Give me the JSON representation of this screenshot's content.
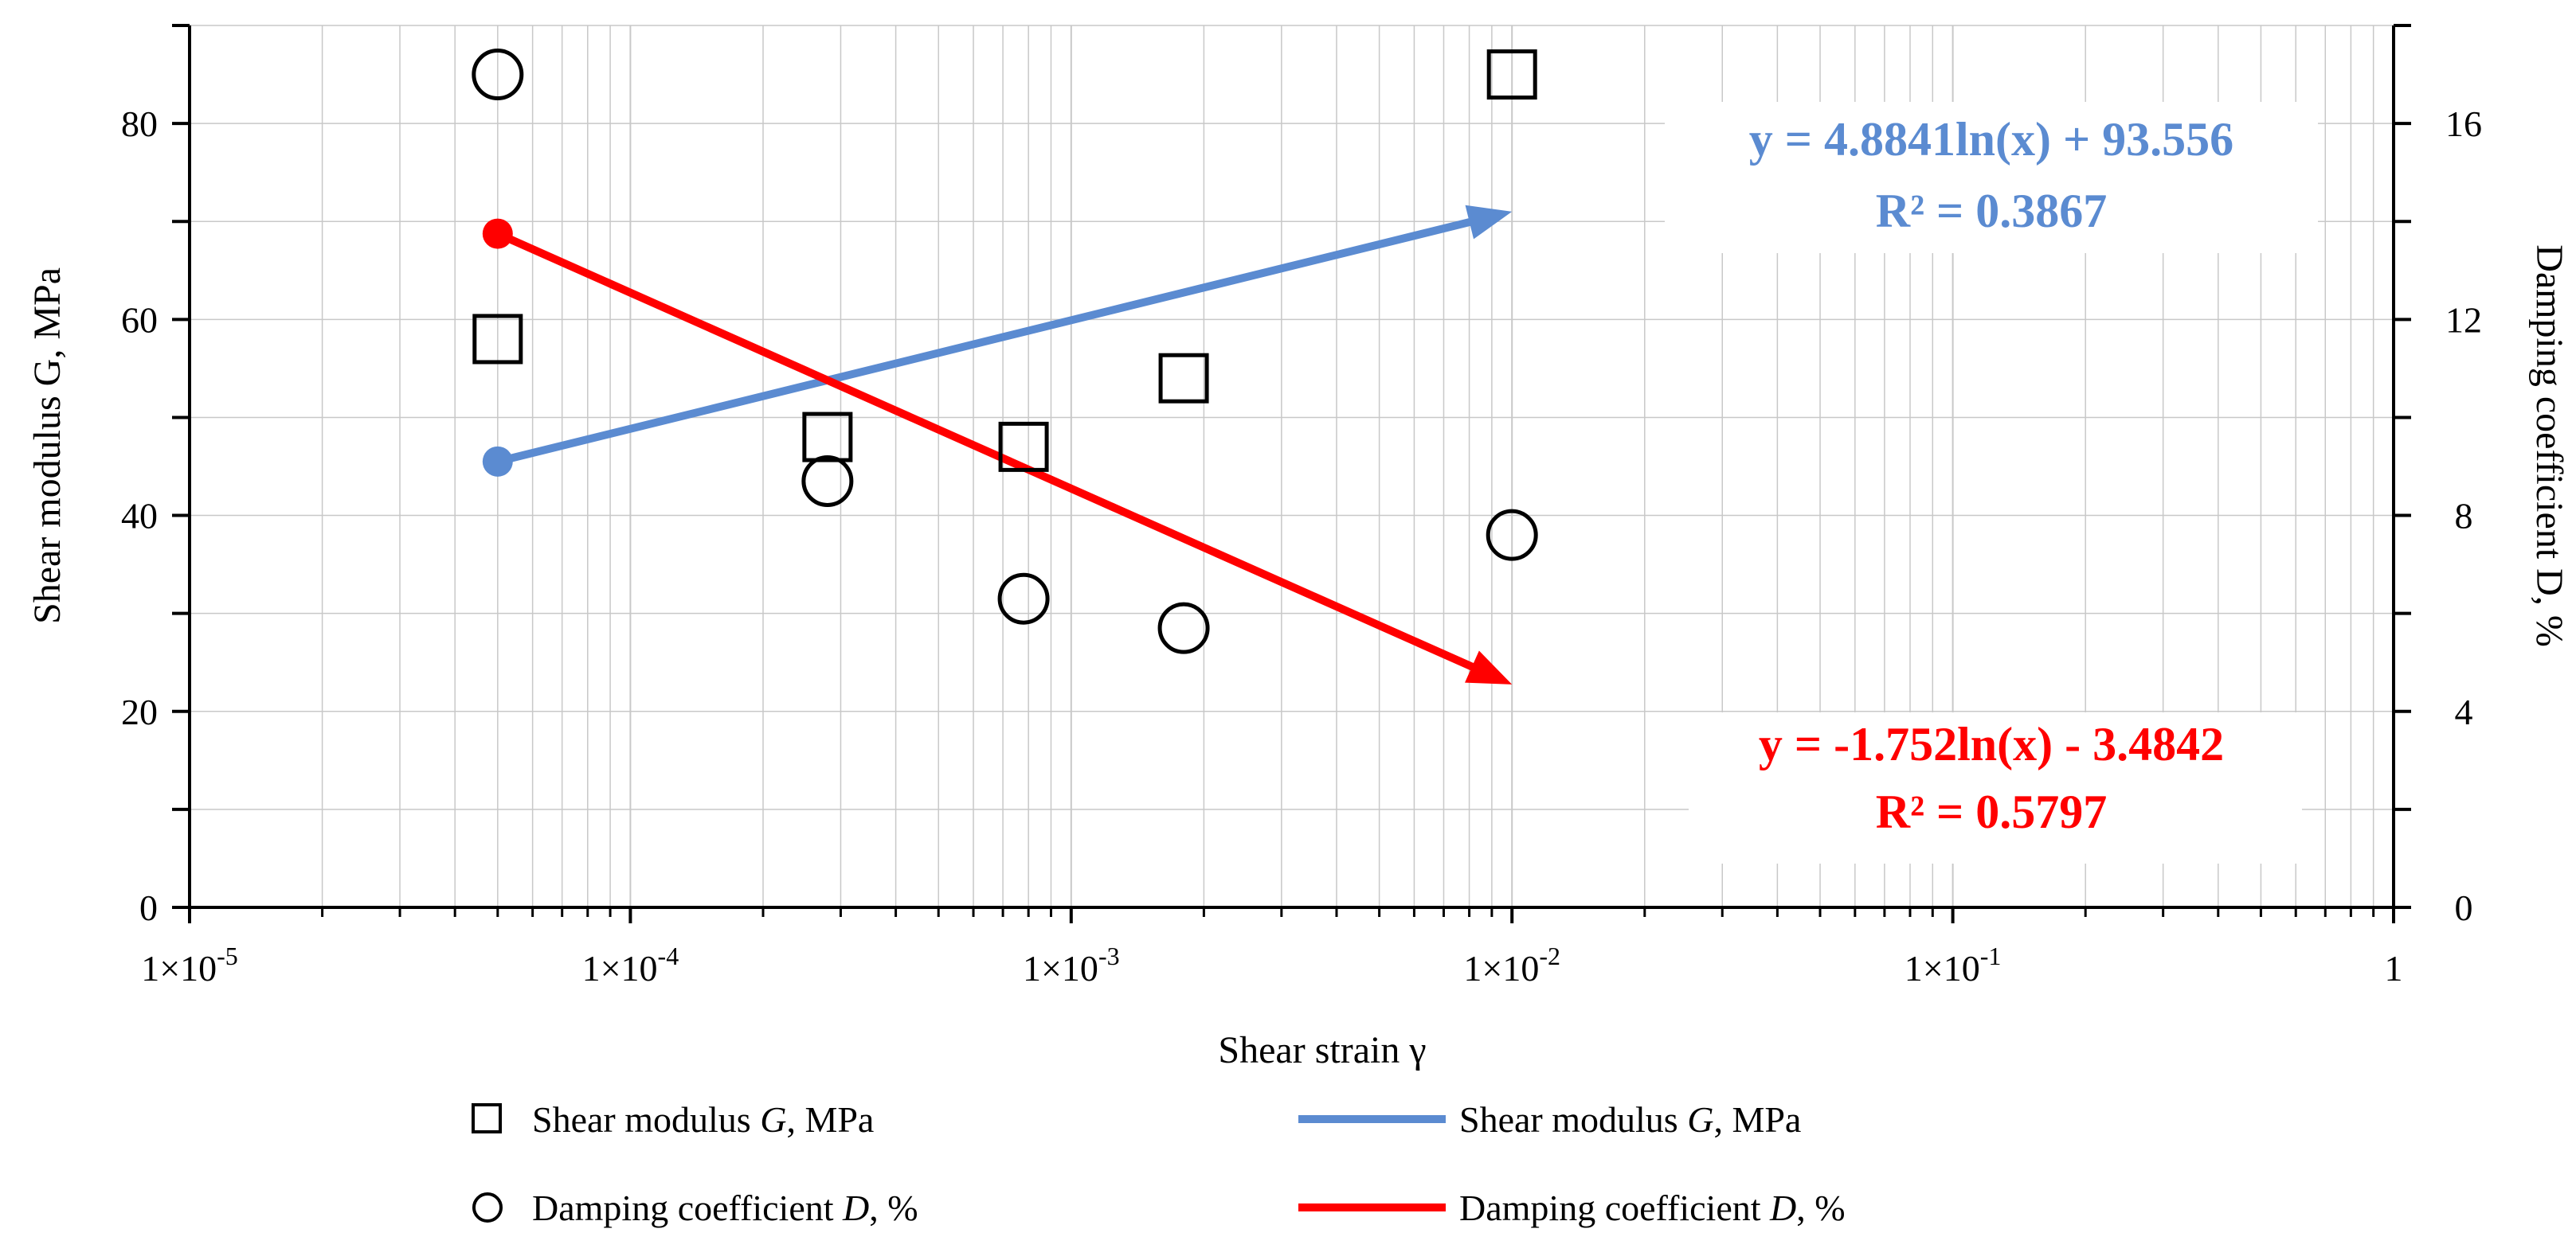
{
  "chart_data": {
    "type": "scatter",
    "x_scale": "log",
    "xlim": [
      1e-05,
      1
    ],
    "ylim_left": [
      0,
      90
    ],
    "ylim_right": [
      0,
      18
    ],
    "xlabel": "Shear strain γ",
    "ylabel_left": "Shear modulus G, MPa",
    "ylabel_right": "Damping coefficient D, %",
    "x_ticks": [
      {
        "value": 1e-05,
        "label": "1×10-5",
        "base": "1×10",
        "exp": "-5"
      },
      {
        "value": 0.0001,
        "label": "1×10-4",
        "base": "1×10",
        "exp": "-4"
      },
      {
        "value": 0.001,
        "label": "1×10-3",
        "base": "1×10",
        "exp": "-3"
      },
      {
        "value": 0.01,
        "label": "1×10-2",
        "base": "1×10",
        "exp": "-2"
      },
      {
        "value": 0.1,
        "label": "1×10-1",
        "base": "1×10",
        "exp": "-1"
      },
      {
        "value": 1,
        "label": "1",
        "base": "1",
        "exp": ""
      }
    ],
    "y_left_ticks": [
      0,
      20,
      40,
      60,
      80
    ],
    "y_right_ticks": [
      0,
      4,
      8,
      12,
      16
    ],
    "series": [
      {
        "name": "Shear modulus G, MPa",
        "kind": "scatter",
        "marker": "square",
        "axis": "left",
        "x": [
          5e-05,
          0.00028,
          0.00078,
          0.0018,
          0.01
        ],
        "y": [
          58,
          48,
          47,
          54,
          85
        ]
      },
      {
        "name": "Damping coefficient D, %",
        "kind": "scatter",
        "marker": "circle",
        "axis": "right",
        "x": [
          5e-05,
          0.00028,
          0.00078,
          0.0018,
          0.01
        ],
        "y": [
          17.0,
          8.7,
          6.3,
          5.7,
          7.6
        ]
      },
      {
        "name": "Shear modulus G, MPa",
        "kind": "trendline",
        "axis": "left",
        "color": "#5b8bd1",
        "equation": "y = 4.8841ln(x) + 93.556",
        "r2": "R² = 0.3867",
        "x": [
          5e-05,
          0.01
        ],
        "y": [
          45.5,
          71.0
        ]
      },
      {
        "name": "Damping coefficient D, %",
        "kind": "trendline",
        "axis": "right",
        "color": "#ff0000",
        "equation": "y = -1.752ln(x) - 3.4842",
        "r2": "R² = 0.5797",
        "x": [
          5e-05,
          0.01
        ],
        "y": [
          13.75,
          4.55
        ]
      }
    ],
    "legend": [
      {
        "symbol": "square",
        "text": "Shear modulus G, MPa",
        "pre": "Shear modulus ",
        "italic": "G",
        "post": ", MPa"
      },
      {
        "symbol": "blue-line",
        "text": "Shear modulus G, MPa",
        "pre": "Shear modulus ",
        "italic": "G",
        "post": ", MPa"
      },
      {
        "symbol": "circle",
        "text": "Damping coefficient D, %",
        "pre": "Damping coefficient ",
        "italic": "D",
        "post": ", %"
      },
      {
        "symbol": "red-line",
        "text": "Damping coefficient D, %",
        "pre": "Damping coefficient ",
        "italic": "D",
        "post": ", %"
      }
    ]
  },
  "colors": {
    "blue": "#5b8bd1",
    "red": "#ff0000",
    "grid": "#c8c8c8",
    "axis": "#000000"
  }
}
